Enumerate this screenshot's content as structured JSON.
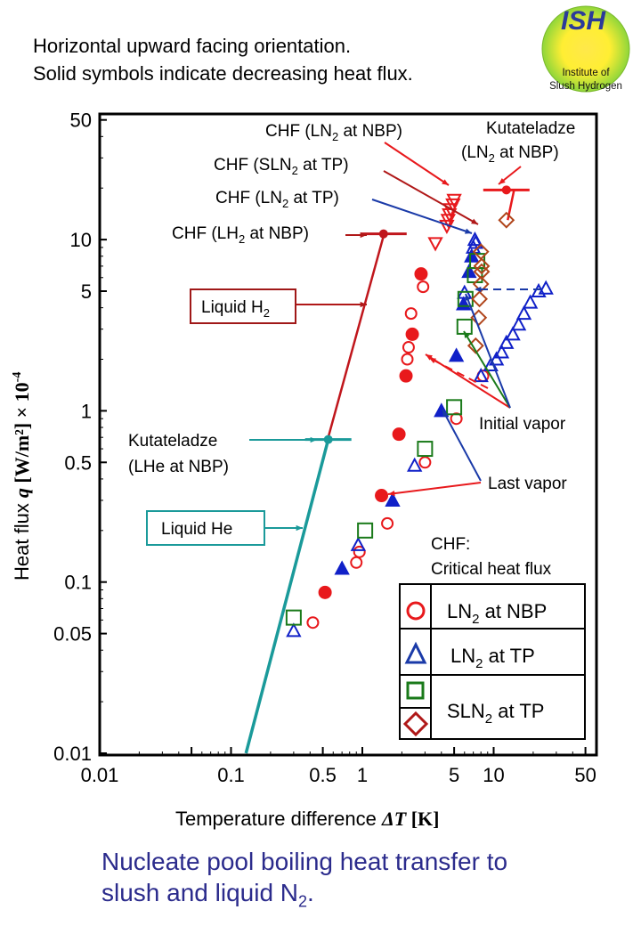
{
  "header": {
    "line1": "Horizontal upward facing orientation.",
    "line2": "Solid symbols indicate decreasing heat flux."
  },
  "logo": {
    "title": "ISH",
    "line1": "Institute of",
    "line2": "Slush Hydrogen",
    "colors": {
      "outer": "#8fd63a",
      "inner": "#ffe633",
      "title": "#2b3a9a"
    }
  },
  "caption": {
    "text": "Nucleate pool boiling heat transfer to",
    "line2": "slush and liquid N",
    "line2_sub": "2",
    "line2_end": "."
  },
  "chart_data": {
    "type": "scatter",
    "xscale": "log",
    "yscale": "log",
    "xlim": [
      0.01,
      60
    ],
    "ylim": [
      0.01,
      55
    ],
    "xlabel": "Temperature difference ",
    "xlabel_sym": "ΔT",
    "xlabel_unit": " [K]",
    "ylabel": "Heat flux ",
    "ylabel_sym": "q",
    "ylabel_unit": " [W/m²] × 10",
    "ylabel_exp": "-4",
    "xticks": [
      {
        "v": 0.01,
        "label": "0.01"
      },
      {
        "v": 0.1,
        "label": "0.1"
      },
      {
        "v": 0.5,
        "label": "0.5"
      },
      {
        "v": 1,
        "label": "1"
      },
      {
        "v": 5,
        "label": "5"
      },
      {
        "v": 10,
        "label": "10"
      },
      {
        "v": 50,
        "label": "50"
      }
    ],
    "yticks": [
      {
        "v": 0.01,
        "label": "0.01"
      },
      {
        "v": 0.05,
        "label": "0.05"
      },
      {
        "v": 0.1,
        "label": "0.1"
      },
      {
        "v": 0.5,
        "label": "0.5"
      },
      {
        "v": 1,
        "label": "1"
      },
      {
        "v": 5,
        "label": "5"
      },
      {
        "v": 10,
        "label": "10"
      },
      {
        "v": 50,
        "label": "50"
      }
    ],
    "grid": false,
    "colors": {
      "ln2_nbp": "#e8191c",
      "ln2_tp": "#1020c8",
      "sln2_square": "#1a7a1a",
      "sln2_diamond": "#b0441a",
      "lh2": "#c0161c",
      "lhe": "#1a9a9a",
      "blue_arrow": "#1a3aa8"
    },
    "series": [
      {
        "name": "LN2 at NBP (increasing)",
        "marker": "circle",
        "filled": false,
        "color": "#e8191c",
        "points": [
          [
            0.42,
            0.058
          ],
          [
            0.95,
            0.15
          ],
          [
            0.9,
            0.13
          ],
          [
            1.55,
            0.22
          ],
          [
            3.0,
            0.5
          ],
          [
            5.2,
            0.9
          ],
          [
            2.2,
            2.0
          ],
          [
            2.25,
            2.35
          ],
          [
            2.35,
            3.7
          ],
          [
            2.9,
            5.3
          ],
          [
            8.3,
            1.6
          ]
        ]
      },
      {
        "name": "LN2 at NBP (decreasing)",
        "marker": "circle",
        "filled": true,
        "color": "#e8191c",
        "points": [
          [
            0.52,
            0.087
          ],
          [
            1.4,
            0.32
          ],
          [
            1.9,
            0.73
          ],
          [
            2.15,
            1.6
          ],
          [
            2.4,
            2.8
          ],
          [
            2.8,
            6.3
          ]
        ]
      },
      {
        "name": "LN2 at TP (increasing)",
        "marker": "triangle",
        "filled": false,
        "color": "#1020c8",
        "points": [
          [
            0.3,
            0.052
          ],
          [
            0.93,
            0.165
          ],
          [
            2.5,
            0.48
          ],
          [
            8.0,
            1.6
          ],
          [
            6.0,
            4.9
          ],
          [
            7.0,
            9.0
          ],
          [
            7.2,
            10.0
          ],
          [
            7.3,
            9.6
          ],
          [
            9.5,
            1.85
          ],
          [
            10.5,
            2.0
          ],
          [
            11.5,
            2.2
          ],
          [
            12.5,
            2.5
          ],
          [
            14,
            2.8
          ],
          [
            15.5,
            3.2
          ],
          [
            17,
            3.7
          ],
          [
            19,
            4.3
          ],
          [
            22,
            5.0
          ],
          [
            25,
            5.2
          ]
        ]
      },
      {
        "name": "LN2 at TP (decreasing)",
        "marker": "triangle",
        "filled": true,
        "color": "#1020c8",
        "points": [
          [
            0.7,
            0.12
          ],
          [
            1.7,
            0.3
          ],
          [
            4.0,
            1.0
          ],
          [
            5.2,
            2.1
          ],
          [
            5.9,
            4.2
          ],
          [
            6.5,
            6.5
          ],
          [
            6.8,
            8.0
          ]
        ]
      },
      {
        "name": "SLN2 at TP (square)",
        "marker": "square",
        "filled": false,
        "color": "#1a7a1a",
        "points": [
          [
            0.3,
            0.062
          ],
          [
            1.05,
            0.2
          ],
          [
            3.0,
            0.6
          ],
          [
            5.0,
            1.05
          ],
          [
            6.0,
            3.1
          ],
          [
            6.1,
            4.5
          ],
          [
            7.2,
            6.2
          ],
          [
            7.5,
            7.5
          ]
        ]
      },
      {
        "name": "SLN2 at TP (diamond)",
        "marker": "diamond",
        "filled": false,
        "color": "#b0441a",
        "points": [
          [
            12.5,
            13.0
          ],
          [
            7.3,
            2.4
          ],
          [
            7.7,
            3.5
          ],
          [
            7.8,
            4.5
          ],
          [
            8.0,
            5.5
          ],
          [
            8.1,
            6.5
          ],
          [
            8.1,
            7.0
          ],
          [
            8.0,
            8.5
          ]
        ]
      },
      {
        "name": "CHF (LN2 at NBP)",
        "marker": "triangle-down",
        "filled": false,
        "color": "#e8191c",
        "points": [
          [
            5.0,
            17
          ],
          [
            4.9,
            16
          ],
          [
            4.7,
            15
          ],
          [
            4.6,
            14
          ],
          [
            4.5,
            13
          ],
          [
            4.4,
            12
          ],
          [
            3.6,
            9.5
          ]
        ]
      }
    ],
    "curves": [
      {
        "name": "Liquid H2",
        "color": "#c0161c",
        "points": [
          [
            0.55,
            0.7
          ],
          [
            1.45,
            10.5
          ]
        ]
      },
      {
        "name": "Liquid He",
        "color": "#1a9a9a",
        "points": [
          [
            0.13,
            0.01
          ],
          [
            0.55,
            0.68
          ]
        ]
      },
      {
        "name": "Kutateladze (LN2 at NBP)",
        "color": "#e8191c",
        "points": [
          [
            12.8,
            13.0
          ],
          [
            14.3,
            19.5
          ]
        ]
      }
    ],
    "kutateladze_points": [
      {
        "name": "Kutateladze (LH2 at NBP)",
        "x": 1.45,
        "y": 10.8,
        "color": "#c0161c"
      },
      {
        "name": "Kutateladze (LHe at NBP)",
        "x": 0.55,
        "y": 0.68,
        "color": "#1a9a9a"
      },
      {
        "name": "Kutateladze (LN2 at NBP)",
        "x": 12.5,
        "y": 19.5,
        "color": "#e8191c"
      }
    ],
    "annotations": {
      "chf_ln2_nbp": {
        "pre": "CHF (LN",
        "sub": "2",
        "post": " at NBP)"
      },
      "chf_sln2_tp": {
        "pre": "CHF (SLN",
        "sub": "2",
        "post": " at TP)"
      },
      "chf_ln2_tp": {
        "pre": "CHF (LN",
        "sub": "2",
        "post": " at TP)"
      },
      "chf_lh2_nbp": {
        "pre": "CHF (LH",
        "sub": "2",
        "post": " at NBP)"
      },
      "kut_ln2_line1": "Kutateladze",
      "kut_ln2_line2": {
        "pre": "(LN",
        "sub": "2",
        "post": " at NBP)"
      },
      "liquid_h2": {
        "pre": "Liquid H",
        "sub": "2"
      },
      "kut_lhe_line1": "Kutateladze",
      "kut_lhe_line2": "(LHe at NBP)",
      "liquid_he": "Liquid He",
      "initial_vapor": "Initial vapor",
      "last_vapor": "Last vapor",
      "chf_def_line1": "CHF:",
      "chf_def_line2": "Critical heat flux"
    },
    "legend": {
      "placement": "bottom-right",
      "entries": [
        {
          "marker": "circle",
          "color": "#e8191c",
          "pre": "LN",
          "sub": "2",
          "post": " at NBP"
        },
        {
          "marker": "triangle",
          "color": "#1a3aa8",
          "pre": "LN",
          "sub": "2",
          "post": " at TP"
        },
        {
          "marker": "square+diamond",
          "color": "#1a7a1a",
          "color2": "#b0441a",
          "pre": "SLN",
          "sub": "2",
          "post": " at TP"
        }
      ]
    }
  }
}
